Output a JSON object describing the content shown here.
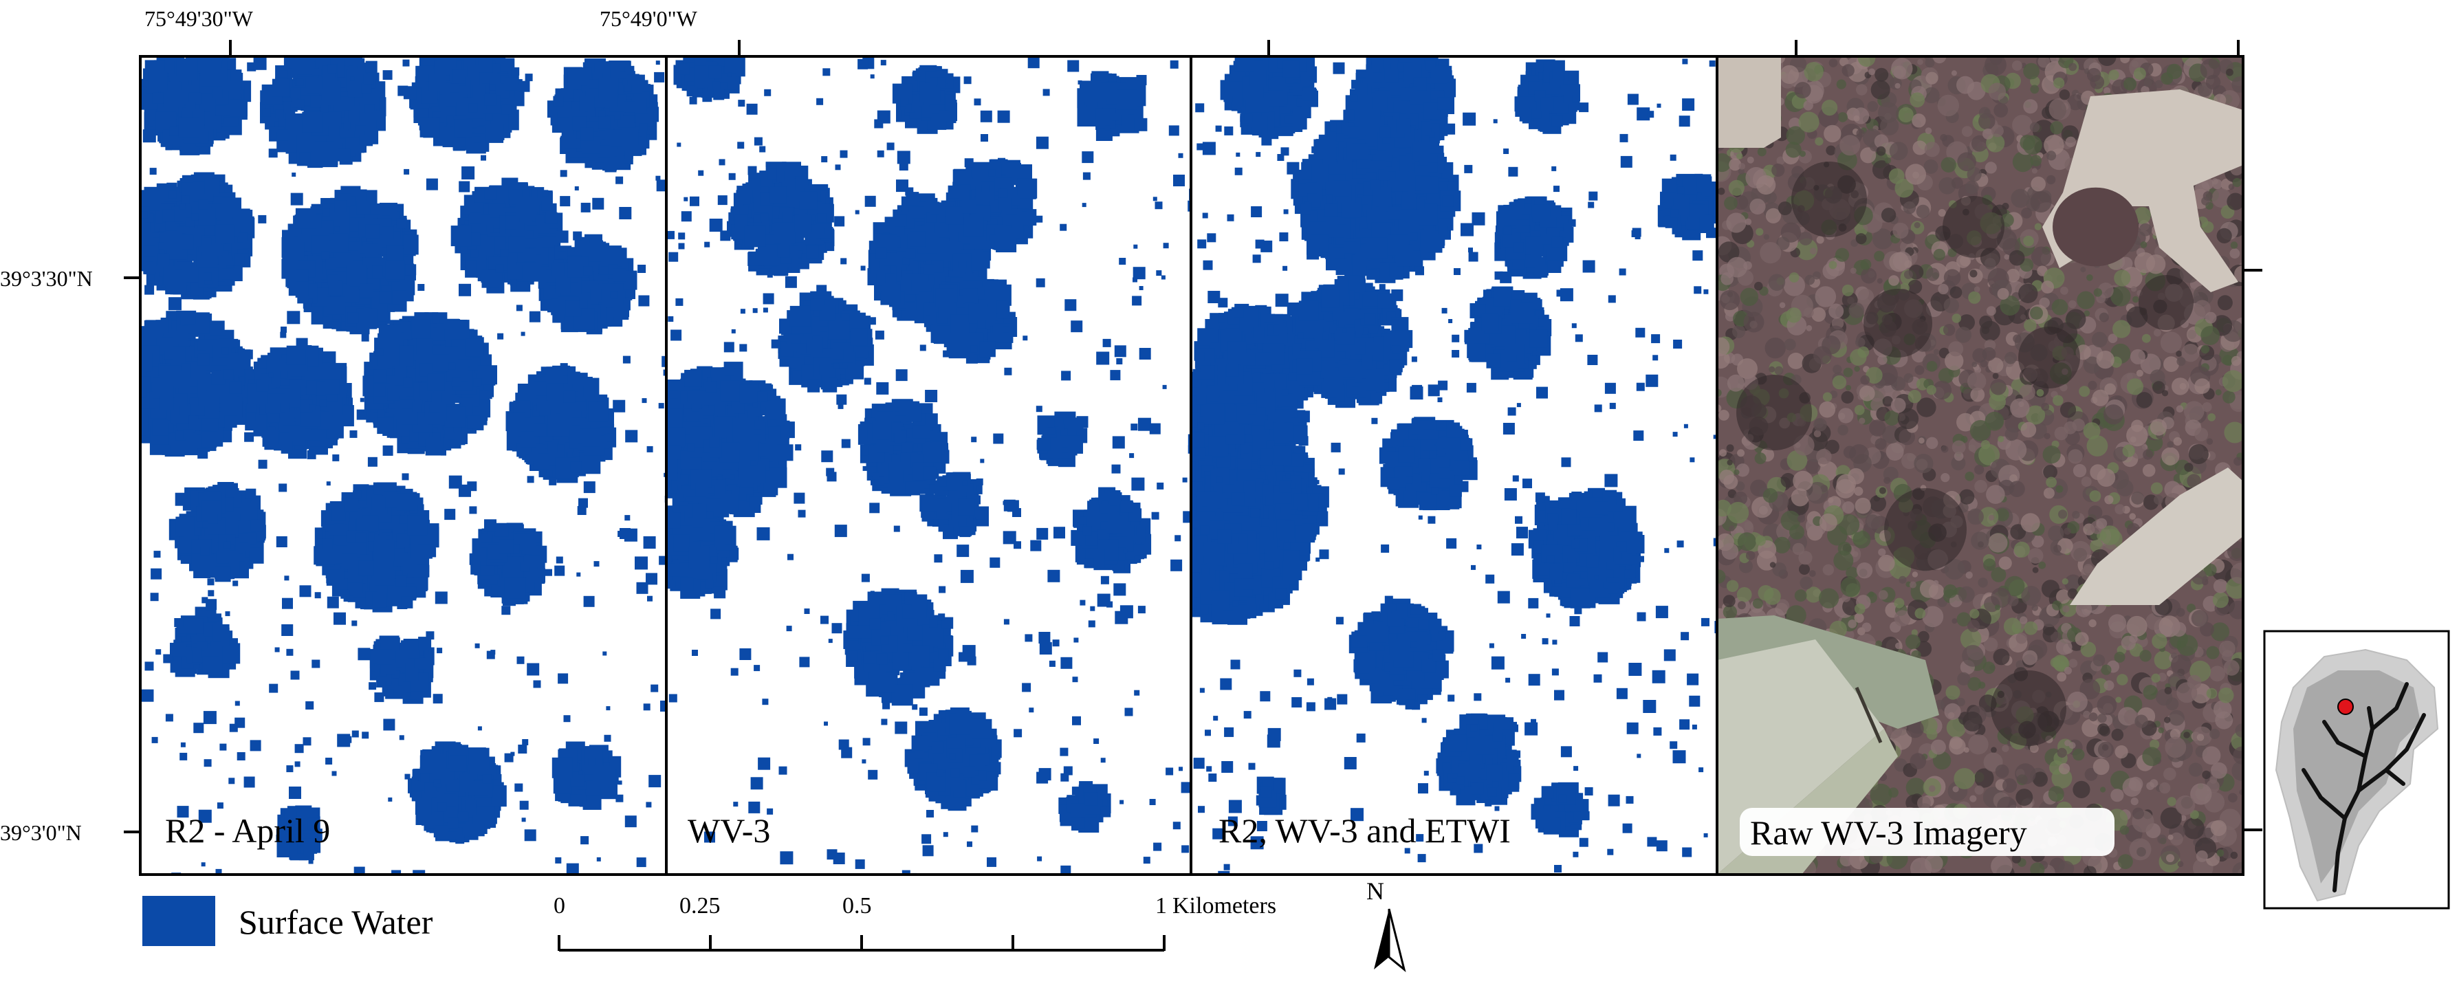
{
  "coordinates": {
    "top_left_lon": "75°49'30\"W",
    "top_mid_lon": "75°49'0\"W",
    "left_upper_lat": "39°3'30\"N",
    "left_lower_lat": "39°3'0\"N"
  },
  "panels": [
    {
      "label": "R2 - April 9",
      "type": "water-mask"
    },
    {
      "label": "WV-3",
      "type": "water-mask"
    },
    {
      "label": "R2, WV-3 and ETWI",
      "type": "water-mask"
    },
    {
      "label": "Raw WV-3 Imagery",
      "type": "imagery"
    }
  ],
  "legend": {
    "label": "Surface Water",
    "color": "#0b4aa8"
  },
  "scale_bar": {
    "ticks": [
      "0",
      "0.25",
      "0.5",
      "1"
    ],
    "unit": "Kilometers",
    "values_km": [
      0,
      0.25,
      0.5,
      0.75,
      1
    ]
  },
  "north_arrow": {
    "label": "N"
  },
  "locator_map": {
    "marker_color": "#e0141b",
    "icon": "watershed-locator-icon"
  },
  "colors": {
    "water": "#0b4aa8",
    "border": "#000000",
    "imagery_base": "#6b5557"
  }
}
